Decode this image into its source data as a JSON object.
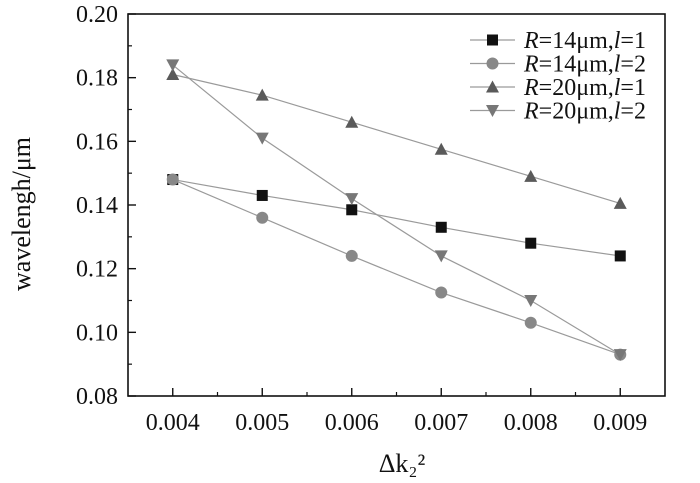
{
  "chart_data": {
    "type": "line",
    "title": "",
    "xlabel": "Δk₂²",
    "ylabel": "wavelengh/μm",
    "xlim": [
      0.0035,
      0.0095
    ],
    "ylim": [
      0.08,
      0.2
    ],
    "x": [
      0.004,
      0.005,
      0.006,
      0.007,
      0.008,
      0.009
    ],
    "x_tick_labels": [
      "0.004",
      "0.005",
      "0.006",
      "0.007",
      "0.008",
      "0.009"
    ],
    "y_tick_labels": [
      "0.08",
      "0.10",
      "0.12",
      "0.14",
      "0.16",
      "0.18",
      "0.20"
    ],
    "grid": false,
    "legend_position": "top-right",
    "series": [
      {
        "name": "R=14μm,l=1",
        "marker": "square",
        "color": "#111111",
        "values": [
          0.148,
          0.143,
          0.1385,
          0.133,
          0.128,
          0.124
        ]
      },
      {
        "name": "R=14μm,l=2",
        "marker": "circle",
        "color": "#888888",
        "values": [
          0.148,
          0.136,
          0.124,
          0.1125,
          0.103,
          0.093
        ]
      },
      {
        "name": "R=20μm,l=1",
        "marker": "triangle-up",
        "color": "#5a5a5a",
        "values": [
          0.181,
          0.1745,
          0.166,
          0.1575,
          0.149,
          0.1405
        ]
      },
      {
        "name": "R=20μm,l=2",
        "marker": "triangle-down",
        "color": "#777777",
        "values": [
          0.184,
          0.161,
          0.142,
          0.124,
          0.11,
          0.093
        ]
      }
    ]
  }
}
